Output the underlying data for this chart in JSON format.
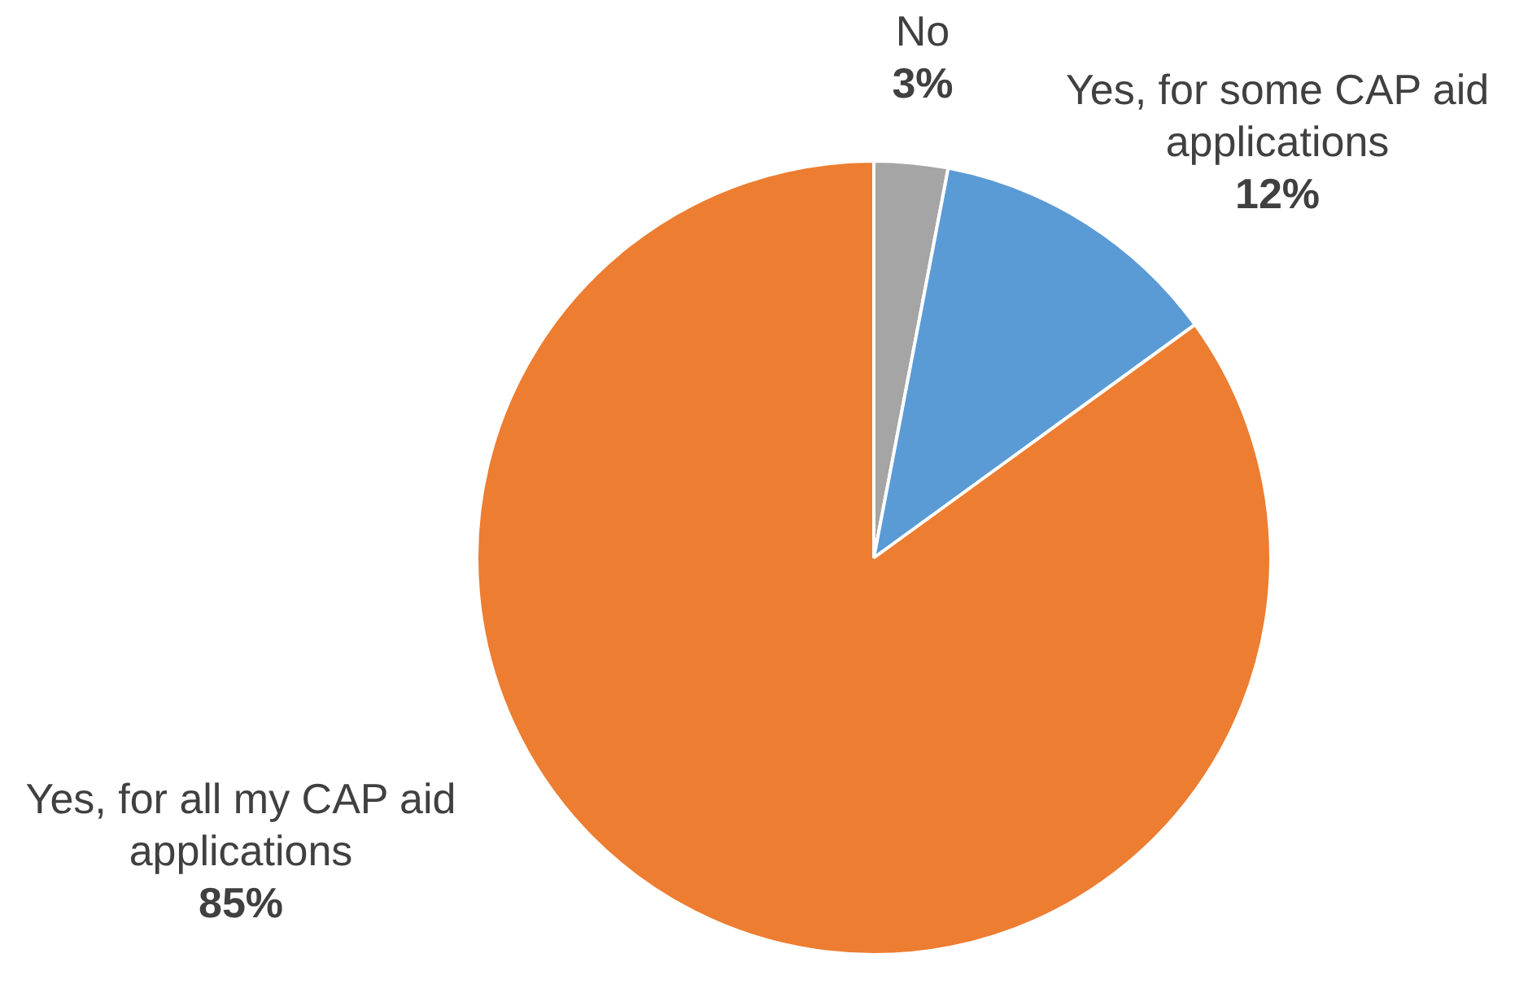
{
  "chart_data": {
    "type": "pie",
    "categories": [
      "No",
      "Yes, for some CAP aid applications",
      "Yes, for all my CAP aid applications"
    ],
    "values": [
      3,
      12,
      85
    ],
    "value_labels": [
      "3%",
      "12%",
      "85%"
    ],
    "colors": [
      "#a5a5a5",
      "#5b9bd5",
      "#ed7d31"
    ],
    "legend": false
  }
}
